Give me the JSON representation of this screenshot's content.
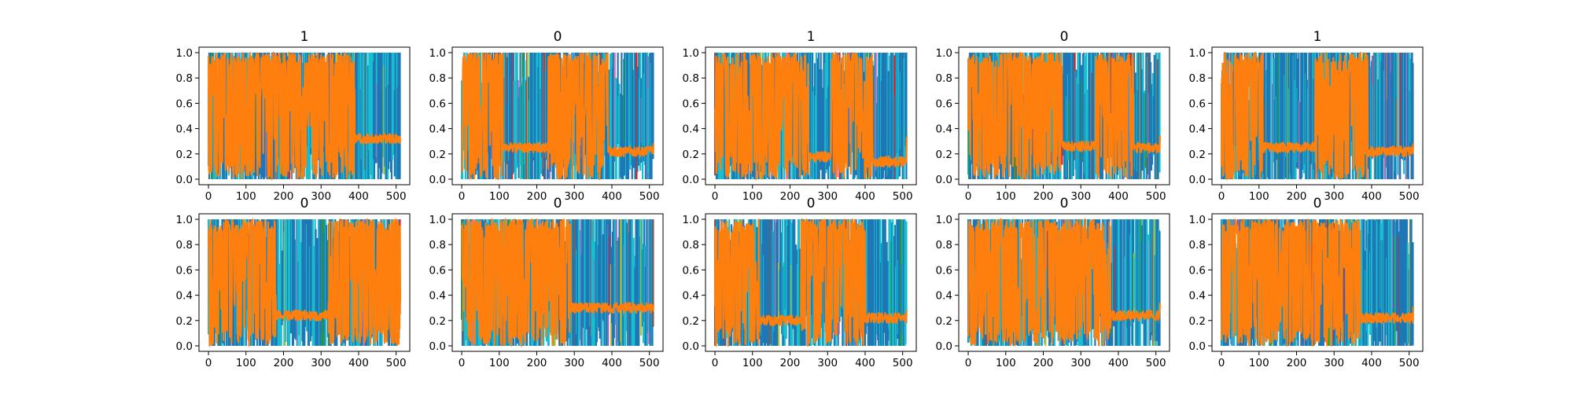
{
  "chart_data": {
    "type": "line",
    "layout": "2 rows x 5 columns of subplots",
    "x_range": [
      0,
      511
    ],
    "y_range": [
      0,
      1
    ],
    "x_ticks": [
      0,
      100,
      200,
      300,
      400,
      500
    ],
    "y_ticks": [
      0.0,
      0.2,
      0.4,
      0.6,
      0.8,
      1.0
    ],
    "x_tick_labels": [
      "0",
      "100",
      "200",
      "300",
      "400",
      "500"
    ],
    "y_tick_labels": [
      "0.0",
      "0.2",
      "0.4",
      "0.6",
      "0.8",
      "1.0"
    ],
    "grid": false,
    "legend": "none",
    "series_colors": {
      "background_series": [
        "#1f77b4",
        "#17becf",
        "#2ca02c",
        "#bcbd22",
        "#9467bd",
        "#8c564b",
        "#d62728",
        "#e377c2",
        "#7f7f7f"
      ],
      "highlighted_series": "#ff7f0e"
    },
    "panels": [
      {
        "title": "1",
        "orange_dense": [
          [
            0,
            390
          ]
        ],
        "orange_flat": [
          [
            390,
            511,
            0.32
          ]
        ]
      },
      {
        "title": "0",
        "orange_dense": [
          [
            0,
            110
          ],
          [
            230,
            390
          ]
        ],
        "orange_flat": [
          [
            110,
            230,
            0.25
          ],
          [
            390,
            511,
            0.22
          ]
        ]
      },
      {
        "title": "1",
        "orange_dense": [
          [
            0,
            250
          ],
          [
            310,
            420
          ]
        ],
        "orange_flat": [
          [
            250,
            310,
            0.18
          ],
          [
            420,
            511,
            0.14
          ]
        ]
      },
      {
        "title": "0",
        "orange_dense": [
          [
            0,
            250
          ],
          [
            340,
            440
          ]
        ],
        "orange_flat": [
          [
            250,
            340,
            0.26
          ],
          [
            440,
            511,
            0.25
          ]
        ]
      },
      {
        "title": "1",
        "orange_dense": [
          [
            0,
            110
          ],
          [
            250,
            390
          ]
        ],
        "orange_flat": [
          [
            110,
            250,
            0.25
          ],
          [
            390,
            511,
            0.22
          ]
        ]
      },
      {
        "title": "0",
        "orange_dense": [
          [
            0,
            180
          ],
          [
            320,
            511
          ]
        ],
        "orange_flat": [
          [
            180,
            320,
            0.24
          ]
        ]
      },
      {
        "title": "0",
        "orange_dense": [
          [
            0,
            290
          ]
        ],
        "orange_flat": [
          [
            290,
            511,
            0.3
          ]
        ]
      },
      {
        "title": "0",
        "orange_dense": [
          [
            0,
            120
          ],
          [
            230,
            400
          ]
        ],
        "orange_flat": [
          [
            120,
            230,
            0.2
          ],
          [
            400,
            511,
            0.22
          ]
        ]
      },
      {
        "title": "0",
        "orange_dense": [
          [
            0,
            380
          ]
        ],
        "orange_flat": [
          [
            380,
            511,
            0.24
          ]
        ]
      },
      {
        "title": "0",
        "orange_dense": [
          [
            0,
            370
          ]
        ],
        "orange_flat": [
          [
            370,
            511,
            0.22
          ]
        ]
      }
    ]
  }
}
